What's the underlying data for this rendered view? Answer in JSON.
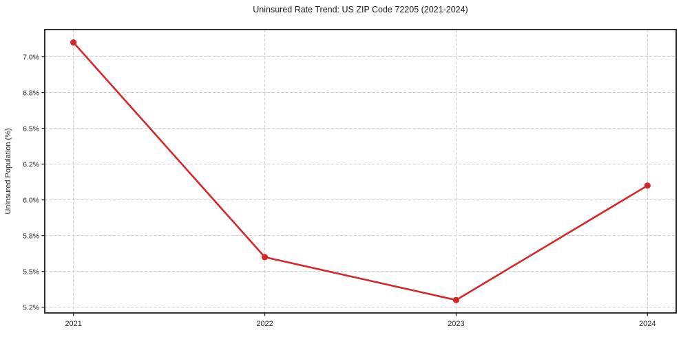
{
  "chart_data": {
    "type": "line",
    "title": "Uninsured Rate Trend: US ZIP Code 72205 (2021-2024)",
    "xlabel": "",
    "ylabel": "Uninsured Population (%)",
    "categories": [
      "2021",
      "2022",
      "2023",
      "2024"
    ],
    "values": [
      7.1,
      5.6,
      5.3,
      6.1
    ],
    "x_numeric": [
      2021,
      2022,
      2023,
      2024
    ],
    "y_ticks": [
      5.25,
      5.5,
      5.75,
      6.0,
      6.25,
      6.5,
      6.75,
      7.0
    ],
    "y_tick_labels": [
      "5.2%",
      "5.5%",
      "5.8%",
      "6.0%",
      "6.2%",
      "6.5%",
      "6.8%",
      "7.0%"
    ],
    "xlim": [
      2020.85,
      2024.15
    ],
    "ylim": [
      5.21,
      7.19
    ],
    "grid": true,
    "grid_style": "dashed",
    "legend": "none",
    "colors": {
      "line": "#d62728",
      "marker": "#d62728",
      "grid": "#cccccc",
      "spine": "#1a1a1a",
      "tick_text": "#262626",
      "title_text": "#1a1a1a",
      "background": "#ffffff"
    }
  }
}
